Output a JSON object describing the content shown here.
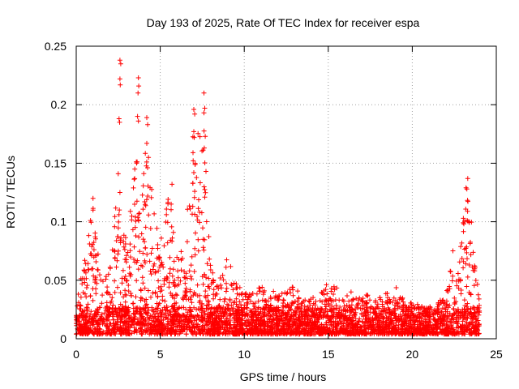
{
  "chart_data": {
    "type": "scatter",
    "title": "Day 193 of 2025, Rate Of TEC Index for receiver espa",
    "xlabel": "GPS time / hours",
    "ylabel": "ROTI / TECUs",
    "xlim": [
      0,
      25
    ],
    "ylim": [
      0,
      0.25
    ],
    "xticks": [
      0,
      5,
      10,
      15,
      20,
      25
    ],
    "xtick_labels": [
      "0",
      "5",
      "10",
      "15",
      "20",
      "25"
    ],
    "yticks": [
      0,
      0.05,
      0.1,
      0.15,
      0.2,
      0.25
    ],
    "ytick_labels": [
      "0",
      "0.05",
      "0.1",
      "0.15",
      "0.2",
      "0.25"
    ],
    "grid": true,
    "marker": "+",
    "color": "#ff0000",
    "series": [
      {
        "name": "ROTI",
        "description_of_density": "dense band of points mostly between 0.005 and 0.04 TECUs over 0-24 h",
        "envelope": [
          {
            "x": 0.0,
            "low": 0.003,
            "high": 0.03
          },
          {
            "x": 0.5,
            "low": 0.003,
            "high": 0.07
          },
          {
            "x": 1.0,
            "low": 0.003,
            "high": 0.12
          },
          {
            "x": 1.5,
            "low": 0.003,
            "high": 0.05
          },
          {
            "x": 2.0,
            "low": 0.003,
            "high": 0.06
          },
          {
            "x": 2.5,
            "low": 0.003,
            "high": 0.14
          },
          {
            "x": 3.0,
            "low": 0.003,
            "high": 0.08
          },
          {
            "x": 3.5,
            "low": 0.003,
            "high": 0.15
          },
          {
            "x": 4.0,
            "low": 0.003,
            "high": 0.19
          },
          {
            "x": 4.5,
            "low": 0.003,
            "high": 0.13
          },
          {
            "x": 5.0,
            "low": 0.003,
            "high": 0.08
          },
          {
            "x": 5.5,
            "low": 0.003,
            "high": 0.13
          },
          {
            "x": 6.0,
            "low": 0.003,
            "high": 0.07
          },
          {
            "x": 6.5,
            "low": 0.003,
            "high": 0.09
          },
          {
            "x": 7.0,
            "low": 0.003,
            "high": 0.19
          },
          {
            "x": 7.5,
            "low": 0.003,
            "high": 0.21
          },
          {
            "x": 8.0,
            "low": 0.003,
            "high": 0.06
          },
          {
            "x": 8.5,
            "low": 0.003,
            "high": 0.05
          },
          {
            "x": 9.0,
            "low": 0.003,
            "high": 0.07
          },
          {
            "x": 9.5,
            "low": 0.003,
            "high": 0.05
          },
          {
            "x": 10.0,
            "low": 0.003,
            "high": 0.04
          },
          {
            "x": 11.0,
            "low": 0.003,
            "high": 0.045
          },
          {
            "x": 12.0,
            "low": 0.003,
            "high": 0.04
          },
          {
            "x": 13.0,
            "low": 0.003,
            "high": 0.045
          },
          {
            "x": 14.0,
            "low": 0.003,
            "high": 0.035
          },
          {
            "x": 15.0,
            "low": 0.003,
            "high": 0.05
          },
          {
            "x": 16.0,
            "low": 0.003,
            "high": 0.04
          },
          {
            "x": 17.0,
            "low": 0.003,
            "high": 0.04
          },
          {
            "x": 18.0,
            "low": 0.003,
            "high": 0.035
          },
          {
            "x": 19.0,
            "low": 0.003,
            "high": 0.045
          },
          {
            "x": 20.0,
            "low": 0.003,
            "high": 0.03
          },
          {
            "x": 21.0,
            "low": 0.003,
            "high": 0.03
          },
          {
            "x": 22.0,
            "low": 0.003,
            "high": 0.035
          },
          {
            "x": 22.5,
            "low": 0.003,
            "high": 0.09
          },
          {
            "x": 23.0,
            "low": 0.003,
            "high": 0.1
          },
          {
            "x": 23.3,
            "low": 0.003,
            "high": 0.137
          },
          {
            "x": 23.7,
            "low": 0.003,
            "high": 0.08
          },
          {
            "x": 24.0,
            "low": 0.003,
            "high": 0.03
          }
        ],
        "outliers": [
          {
            "x": 2.6,
            "y": 0.238
          },
          {
            "x": 2.65,
            "y": 0.235
          },
          {
            "x": 2.6,
            "y": 0.222
          },
          {
            "x": 2.62,
            "y": 0.217
          },
          {
            "x": 2.55,
            "y": 0.188
          },
          {
            "x": 2.58,
            "y": 0.185
          },
          {
            "x": 3.7,
            "y": 0.223
          },
          {
            "x": 3.72,
            "y": 0.216
          },
          {
            "x": 3.68,
            "y": 0.21
          },
          {
            "x": 3.65,
            "y": 0.19
          },
          {
            "x": 3.7,
            "y": 0.186
          },
          {
            "x": 4.2,
            "y": 0.189
          },
          {
            "x": 4.25,
            "y": 0.183
          },
          {
            "x": 4.2,
            "y": 0.167
          },
          {
            "x": 4.3,
            "y": 0.155
          },
          {
            "x": 7.0,
            "y": 0.196
          },
          {
            "x": 7.05,
            "y": 0.192
          },
          {
            "x": 7.0,
            "y": 0.177
          },
          {
            "x": 7.02,
            "y": 0.172
          },
          {
            "x": 6.95,
            "y": 0.159
          },
          {
            "x": 7.0,
            "y": 0.142
          },
          {
            "x": 7.05,
            "y": 0.126
          },
          {
            "x": 7.6,
            "y": 0.21
          },
          {
            "x": 7.65,
            "y": 0.197
          },
          {
            "x": 7.6,
            "y": 0.193
          },
          {
            "x": 7.68,
            "y": 0.173
          },
          {
            "x": 7.62,
            "y": 0.163
          },
          {
            "x": 7.65,
            "y": 0.121
          },
          {
            "x": 1.0,
            "y": 0.12
          },
          {
            "x": 1.0,
            "y": 0.11
          },
          {
            "x": 2.5,
            "y": 0.141
          },
          {
            "x": 2.6,
            "y": 0.125
          },
          {
            "x": 5.7,
            "y": 0.132
          },
          {
            "x": 5.65,
            "y": 0.115
          },
          {
            "x": 23.3,
            "y": 0.137
          },
          {
            "x": 23.2,
            "y": 0.129
          },
          {
            "x": 23.25,
            "y": 0.128
          },
          {
            "x": 23.4,
            "y": 0.1
          }
        ]
      }
    ]
  }
}
